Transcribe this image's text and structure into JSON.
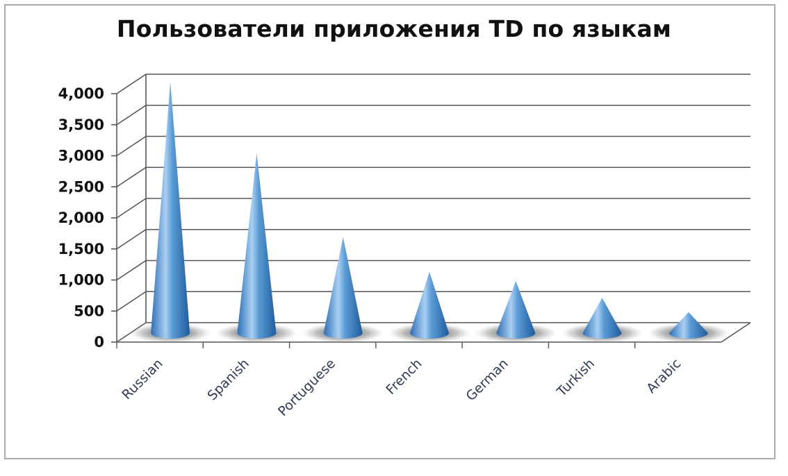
{
  "chart_data": {
    "type": "bar",
    "style": "3d-cone",
    "title": "Пользователи приложения TD по языкам",
    "xlabel": "",
    "ylabel": "",
    "categories": [
      "Russian",
      "Spanish",
      "Portuguese",
      "French",
      "German",
      "Turkish",
      "Arabic"
    ],
    "values": [
      3880,
      2730,
      1380,
      820,
      670,
      400,
      170
    ],
    "ylim": [
      0,
      4000
    ],
    "yticks": [
      0,
      500,
      1000,
      1500,
      2000,
      2500,
      3000,
      3500,
      4000
    ],
    "ytick_labels": [
      "0",
      "500",
      "1,000",
      "1,500",
      "2,000",
      "2,500",
      "3,000",
      "3,500",
      "4,000"
    ],
    "grid": true,
    "legend": "none",
    "colors": {
      "cone": "#5b9bd5",
      "cone_dark": "#2f6fb3",
      "cone_light": "#b9d8f4",
      "grid": "#555555"
    }
  }
}
